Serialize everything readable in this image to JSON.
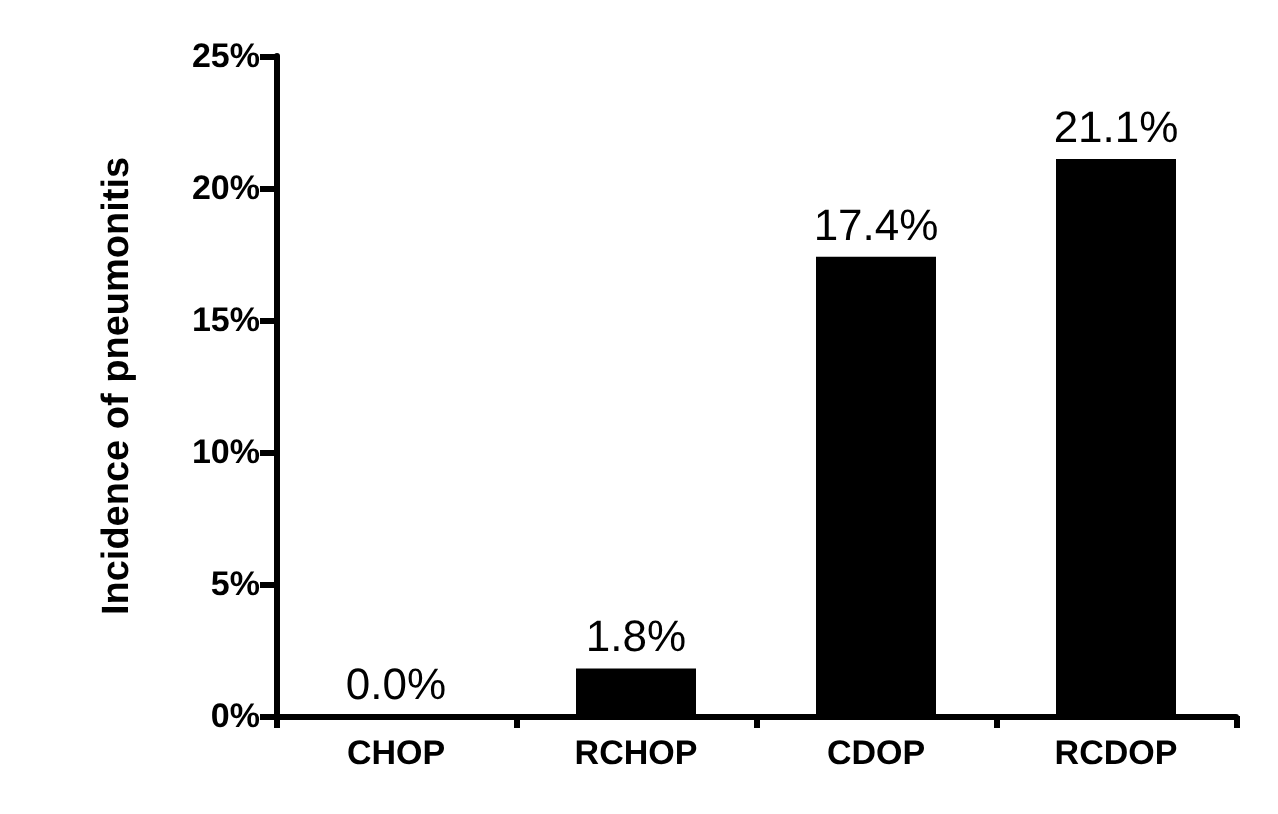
{
  "chart_data": {
    "type": "bar",
    "ylabel": "Incidence of pneumonitis",
    "categories": [
      "CHOP",
      "RCHOP",
      "CDOP",
      "RCDOP"
    ],
    "values": [
      0.0,
      1.8,
      17.4,
      21.1
    ],
    "value_labels": [
      "0.0%",
      "1.8%",
      "17.4%",
      "21.1%"
    ],
    "color": "#000000",
    "ylim": [
      0,
      25
    ],
    "yticks": [
      {
        "value": 0,
        "label": "0%"
      },
      {
        "value": 5,
        "label": "5%"
      },
      {
        "value": 10,
        "label": "10%"
      },
      {
        "value": 15,
        "label": "15%"
      },
      {
        "value": 20,
        "label": "20%"
      },
      {
        "value": 25,
        "label": "25%"
      }
    ],
    "tick_labels": null
  }
}
